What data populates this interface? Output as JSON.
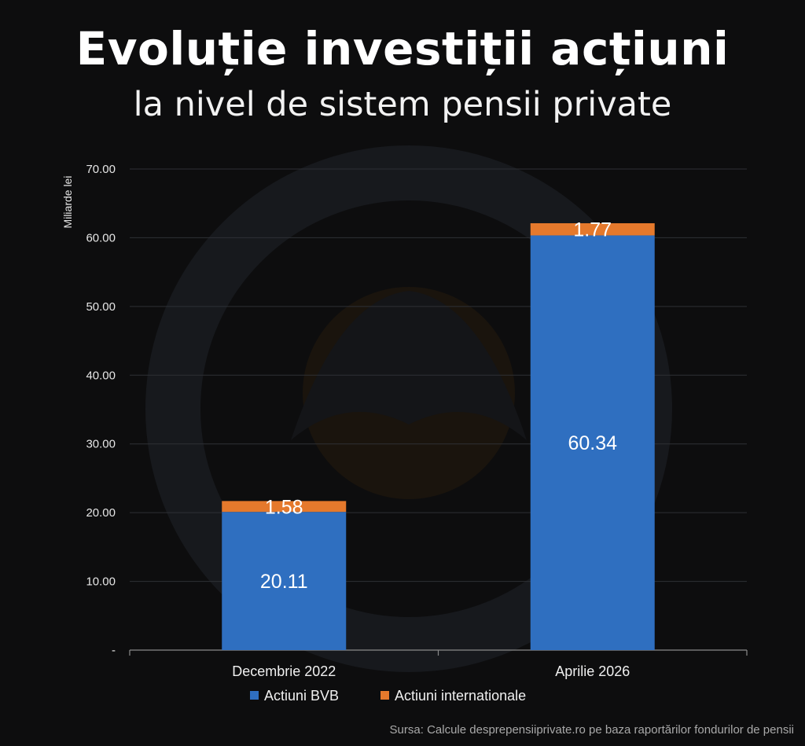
{
  "title": "Evoluție investiții acțiuni",
  "subtitle": "la nivel de sistem pensii private",
  "source": "Sursa: Calcule desprepensiiprivate.ro pe baza raportărilor fondurilor de pensii",
  "colors": {
    "bvb": "#2f6fc0",
    "intl": "#e5792c",
    "background": "#0d0d0e"
  },
  "chart_data": {
    "type": "bar",
    "stacked": true,
    "categories": [
      "Decembrie 2022",
      "Aprilie 2026"
    ],
    "series": [
      {
        "name": "Actiuni BVB",
        "values": [
          20.11,
          60.34
        ],
        "labels": [
          "20.11",
          "60.34"
        ]
      },
      {
        "name": "Actiuni internationale",
        "values": [
          1.58,
          1.77
        ],
        "labels": [
          "1.58",
          "1.77"
        ]
      }
    ],
    "ylabel": "Miliarde lei",
    "ylim": [
      0,
      70
    ],
    "yticks": [
      0,
      10,
      20,
      30,
      40,
      50,
      60,
      70
    ],
    "ytick_labels": [
      "-",
      "10.00",
      "20.00",
      "30.00",
      "40.00",
      "50.00",
      "60.00",
      "70.00"
    ],
    "grid": true,
    "legend_position": "bottom"
  }
}
